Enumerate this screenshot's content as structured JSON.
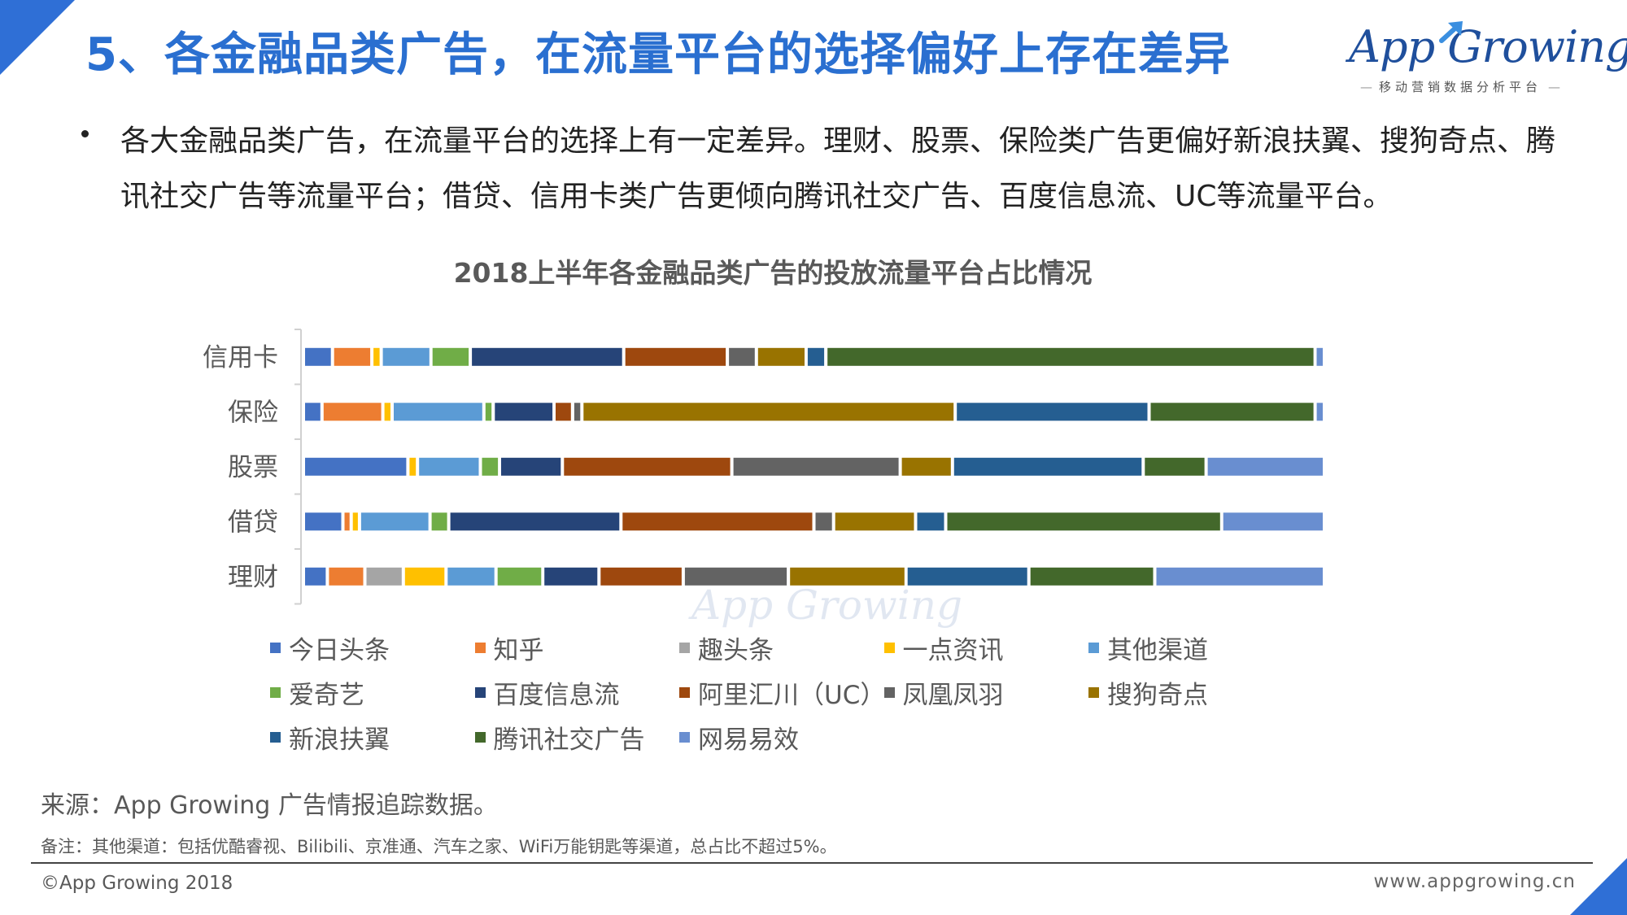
{
  "header": {
    "title": "5、各金融品类广告，在流量平台的选择偏好上存在差异",
    "logo_text": "App Growing",
    "logo_subtitle": "移动营销数据分析平台"
  },
  "bullet": {
    "text": "各大金融品类广告，在流量平台的选择上有一定差异。理财、股票、保险类广告更偏好新浪扶翼、搜狗奇点、腾讯社交广告等流量平台；借贷、信用卡类广告更倾向腾讯社交广告、百度信息流、UC等流量平台。"
  },
  "chart_data": {
    "type": "bar",
    "orientation": "horizontal",
    "stacked": "percent",
    "title": "2018上半年各金融品类广告的投放流量平台占比情况",
    "xlabel": "",
    "ylabel": "",
    "xlim": [
      0,
      100
    ],
    "legend_position": "bottom",
    "categories": [
      "信用卡",
      "保险",
      "股票",
      "借贷",
      "理财"
    ],
    "series": [
      {
        "name": "今日头条",
        "color": "#4472C4",
        "values": [
          2.8,
          1.8,
          9.8,
          3.8,
          2.3
        ]
      },
      {
        "name": "知乎",
        "color": "#ED7D31",
        "values": [
          3.8,
          5.9,
          0,
          0.8,
          3.6
        ]
      },
      {
        "name": "趣头条",
        "color": "#A5A5A5",
        "values": [
          0,
          0,
          0,
          0,
          3.7
        ]
      },
      {
        "name": "一点资讯",
        "color": "#FFC000",
        "values": [
          0.9,
          0.9,
          0.9,
          0.8,
          4.1
        ]
      },
      {
        "name": "其他渠道",
        "color": "#5B9BD5",
        "values": [
          4.8,
          8.9,
          5.9,
          6.8,
          4.8
        ]
      },
      {
        "name": "爱奇艺",
        "color": "#70AD47",
        "values": [
          3.8,
          0.9,
          1.8,
          1.8,
          4.5
        ]
      },
      {
        "name": "百度信息流",
        "color": "#264478",
        "values": [
          14.8,
          5.9,
          5.9,
          16.6,
          5.4
        ]
      },
      {
        "name": "阿里汇川（UC）",
        "color": "#9E480E",
        "values": [
          10.0,
          1.8,
          15.9,
          18.6,
          8.1
        ]
      },
      {
        "name": "凤凰凤羽",
        "color": "#636363",
        "values": [
          2.8,
          0.9,
          15.8,
          1.9,
          10.1
        ]
      },
      {
        "name": "搜狗奇点",
        "color": "#997300",
        "values": [
          4.8,
          36.2,
          4.9,
          7.9,
          11.3
        ]
      },
      {
        "name": "新浪扶翼",
        "color": "#255E91",
        "values": [
          1.9,
          18.8,
          17.9,
          2.9,
          11.8
        ]
      },
      {
        "name": "腾讯社交广告",
        "color": "#43682B",
        "values": [
          47.2,
          16.1,
          5.9,
          26.6,
          12.1
        ]
      },
      {
        "name": "网易易效",
        "color": "#698ED0",
        "values": [
          0.9,
          0.9,
          11.1,
          9.9,
          16.3
        ]
      }
    ]
  },
  "watermark": "App Growing",
  "footer": {
    "source": "来源：App Growing 广告情报追踪数据。",
    "note": "备注：其他渠道：包括优酷睿视、Bilibili、京准通、汽车之家、WiFi万能钥匙等渠道，总占比不超过5%。",
    "copyright": "©App Growing 2018",
    "website": "www.appgrowing.cn"
  }
}
